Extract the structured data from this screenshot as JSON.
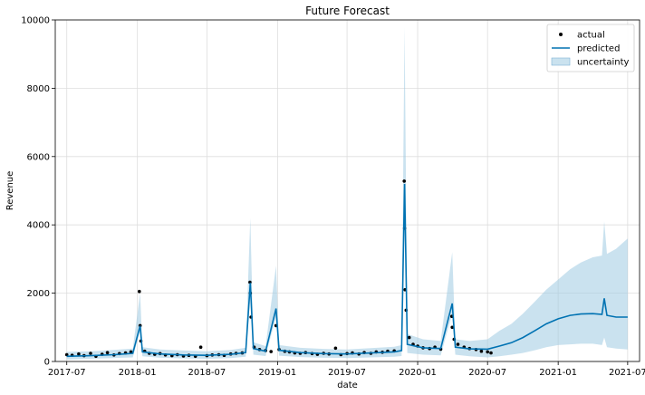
{
  "chart_data": {
    "type": "line",
    "title": "Future Forecast",
    "xlabel": "date",
    "ylabel": "Revenue",
    "xlim": [
      "2017-06-01",
      "2021-08-01"
    ],
    "ylim": [
      0,
      10000
    ],
    "x_ticks": [
      "2017-07",
      "2018-01",
      "2018-07",
      "2019-01",
      "2019-07",
      "2020-01",
      "2020-07",
      "2021-01",
      "2021-07"
    ],
    "y_ticks": [
      0,
      2000,
      4000,
      6000,
      8000,
      10000
    ],
    "grid": true,
    "legend_position": "top-right",
    "colors": {
      "actual": "#000000",
      "predicted": "#0072B2",
      "uncertainty": "#9ecae1"
    },
    "legend": [
      {
        "key": "actual",
        "label": "actual"
      },
      {
        "key": "predicted",
        "label": "predicted"
      },
      {
        "key": "uncertainty",
        "label": "uncertainty"
      }
    ],
    "actual_end": "2020-07-10",
    "forecast_end": "2021-07-01",
    "series": [
      {
        "name": "predicted",
        "points": [
          [
            "2017-07-01",
            150
          ],
          [
            "2017-09-01",
            170
          ],
          [
            "2017-11-01",
            200
          ],
          [
            "2017-12-20",
            240
          ],
          [
            "2018-01-08",
            1050
          ],
          [
            "2018-01-14",
            280
          ],
          [
            "2018-03-01",
            220
          ],
          [
            "2018-05-01",
            190
          ],
          [
            "2018-07-01",
            180
          ],
          [
            "2018-09-01",
            210
          ],
          [
            "2018-10-10",
            260
          ],
          [
            "2018-10-22",
            2300
          ],
          [
            "2018-10-30",
            380
          ],
          [
            "2018-12-01",
            300
          ],
          [
            "2018-12-28",
            1550
          ],
          [
            "2019-01-05",
            330
          ],
          [
            "2019-03-01",
            260
          ],
          [
            "2019-05-01",
            230
          ],
          [
            "2019-07-01",
            220
          ],
          [
            "2019-09-01",
            250
          ],
          [
            "2019-11-01",
            280
          ],
          [
            "2019-11-20",
            320
          ],
          [
            "2019-11-28",
            5200
          ],
          [
            "2019-12-05",
            500
          ],
          [
            "2020-01-15",
            400
          ],
          [
            "2020-03-01",
            380
          ],
          [
            "2020-03-31",
            1700
          ],
          [
            "2020-04-08",
            420
          ],
          [
            "2020-05-15",
            370
          ],
          [
            "2020-07-01",
            360
          ],
          [
            "2020-08-01",
            450
          ],
          [
            "2020-09-01",
            550
          ],
          [
            "2020-10-01",
            700
          ],
          [
            "2020-11-01",
            900
          ],
          [
            "2020-12-01",
            1100
          ],
          [
            "2021-01-01",
            1250
          ],
          [
            "2021-02-01",
            1350
          ],
          [
            "2021-03-01",
            1390
          ],
          [
            "2021-04-01",
            1400
          ],
          [
            "2021-04-25",
            1380
          ],
          [
            "2021-05-01",
            1850
          ],
          [
            "2021-05-08",
            1350
          ],
          [
            "2021-06-01",
            1300
          ],
          [
            "2021-07-01",
            1300
          ]
        ]
      },
      {
        "name": "uncertainty",
        "points": [
          [
            "2017-07-01",
            60,
            280
          ],
          [
            "2017-09-01",
            80,
            300
          ],
          [
            "2017-11-01",
            100,
            340
          ],
          [
            "2017-12-20",
            120,
            380
          ],
          [
            "2018-01-08",
            900,
            2000
          ],
          [
            "2018-01-14",
            150,
            420
          ],
          [
            "2018-03-01",
            110,
            350
          ],
          [
            "2018-05-01",
            90,
            320
          ],
          [
            "2018-07-01",
            80,
            300
          ],
          [
            "2018-09-01",
            100,
            340
          ],
          [
            "2018-10-10",
            140,
            400
          ],
          [
            "2018-10-22",
            1900,
            4200
          ],
          [
            "2018-10-30",
            200,
            560
          ],
          [
            "2018-12-01",
            160,
            450
          ],
          [
            "2018-12-28",
            1300,
            2800
          ],
          [
            "2019-01-05",
            170,
            480
          ],
          [
            "2019-03-01",
            130,
            400
          ],
          [
            "2019-05-01",
            110,
            370
          ],
          [
            "2019-07-01",
            100,
            350
          ],
          [
            "2019-09-01",
            120,
            390
          ],
          [
            "2019-11-01",
            140,
            430
          ],
          [
            "2019-11-20",
            160,
            480
          ],
          [
            "2019-11-28",
            4800,
            9800
          ],
          [
            "2019-12-05",
            250,
            800
          ],
          [
            "2020-01-15",
            200,
            650
          ],
          [
            "2020-03-01",
            180,
            600
          ],
          [
            "2020-03-31",
            1400,
            3200
          ],
          [
            "2020-04-08",
            200,
            650
          ],
          [
            "2020-05-15",
            150,
            600
          ],
          [
            "2020-07-01",
            120,
            650
          ],
          [
            "2020-08-01",
            150,
            900
          ],
          [
            "2020-09-01",
            200,
            1100
          ],
          [
            "2020-10-01",
            250,
            1400
          ],
          [
            "2020-11-01",
            330,
            1750
          ],
          [
            "2020-12-01",
            420,
            2100
          ],
          [
            "2021-01-01",
            480,
            2400
          ],
          [
            "2021-02-01",
            500,
            2700
          ],
          [
            "2021-03-01",
            520,
            2900
          ],
          [
            "2021-04-01",
            520,
            3050
          ],
          [
            "2021-04-25",
            480,
            3100
          ],
          [
            "2021-05-01",
            700,
            4100
          ],
          [
            "2021-05-08",
            420,
            3150
          ],
          [
            "2021-06-01",
            380,
            3300
          ],
          [
            "2021-07-01",
            350,
            3600
          ]
        ]
      },
      {
        "name": "actual",
        "points": [
          [
            "2017-07-01",
            200
          ],
          [
            "2017-07-15",
            180
          ],
          [
            "2017-08-01",
            220
          ],
          [
            "2017-08-15",
            170
          ],
          [
            "2017-09-01",
            240
          ],
          [
            "2017-09-15",
            150
          ],
          [
            "2017-10-01",
            210
          ],
          [
            "2017-10-15",
            260
          ],
          [
            "2017-11-01",
            190
          ],
          [
            "2017-11-15",
            230
          ],
          [
            "2017-12-01",
            250
          ],
          [
            "2017-12-15",
            280
          ],
          [
            "2018-01-06",
            2050
          ],
          [
            "2018-01-08",
            1050
          ],
          [
            "2018-01-10",
            600
          ],
          [
            "2018-01-20",
            300
          ],
          [
            "2018-02-01",
            240
          ],
          [
            "2018-02-15",
            210
          ],
          [
            "2018-03-01",
            230
          ],
          [
            "2018-03-15",
            190
          ],
          [
            "2018-04-01",
            170
          ],
          [
            "2018-04-15",
            200
          ],
          [
            "2018-05-01",
            160
          ],
          [
            "2018-05-15",
            180
          ],
          [
            "2018-06-01",
            150
          ],
          [
            "2018-06-15",
            420
          ],
          [
            "2018-07-01",
            170
          ],
          [
            "2018-07-15",
            190
          ],
          [
            "2018-08-01",
            200
          ],
          [
            "2018-08-15",
            180
          ],
          [
            "2018-09-01",
            220
          ],
          [
            "2018-09-15",
            240
          ],
          [
            "2018-10-01",
            250
          ],
          [
            "2018-10-21",
            2320
          ],
          [
            "2018-10-22",
            2000
          ],
          [
            "2018-10-24",
            1300
          ],
          [
            "2018-11-01",
            420
          ],
          [
            "2018-11-15",
            350
          ],
          [
            "2018-12-01",
            320
          ],
          [
            "2018-12-15",
            290
          ],
          [
            "2018-12-28",
            1050
          ],
          [
            "2019-01-05",
            350
          ],
          [
            "2019-01-20",
            300
          ],
          [
            "2019-02-01",
            280
          ],
          [
            "2019-02-15",
            250
          ],
          [
            "2019-03-01",
            240
          ],
          [
            "2019-03-15",
            260
          ],
          [
            "2019-04-01",
            230
          ],
          [
            "2019-04-15",
            210
          ],
          [
            "2019-05-01",
            240
          ],
          [
            "2019-05-15",
            220
          ],
          [
            "2019-06-01",
            390
          ],
          [
            "2019-06-15",
            200
          ],
          [
            "2019-07-01",
            230
          ],
          [
            "2019-07-15",
            250
          ],
          [
            "2019-08-01",
            220
          ],
          [
            "2019-08-15",
            260
          ],
          [
            "2019-09-01",
            240
          ],
          [
            "2019-09-15",
            280
          ],
          [
            "2019-10-01",
            270
          ],
          [
            "2019-10-15",
            300
          ],
          [
            "2019-11-01",
            310
          ],
          [
            "2019-11-27",
            5280
          ],
          [
            "2019-11-28",
            3900
          ],
          [
            "2019-11-29",
            2100
          ],
          [
            "2019-12-02",
            1500
          ],
          [
            "2019-12-10",
            700
          ],
          [
            "2019-12-20",
            500
          ],
          [
            "2020-01-01",
            450
          ],
          [
            "2020-01-15",
            400
          ],
          [
            "2020-02-01",
            380
          ],
          [
            "2020-02-15",
            420
          ],
          [
            "2020-03-01",
            360
          ],
          [
            "2020-03-30",
            1320
          ],
          [
            "2020-03-31",
            1000
          ],
          [
            "2020-04-05",
            650
          ],
          [
            "2020-04-15",
            500
          ],
          [
            "2020-05-01",
            420
          ],
          [
            "2020-05-15",
            380
          ],
          [
            "2020-06-01",
            350
          ],
          [
            "2020-06-15",
            300
          ],
          [
            "2020-07-01",
            280
          ],
          [
            "2020-07-10",
            250
          ]
        ]
      }
    ]
  }
}
